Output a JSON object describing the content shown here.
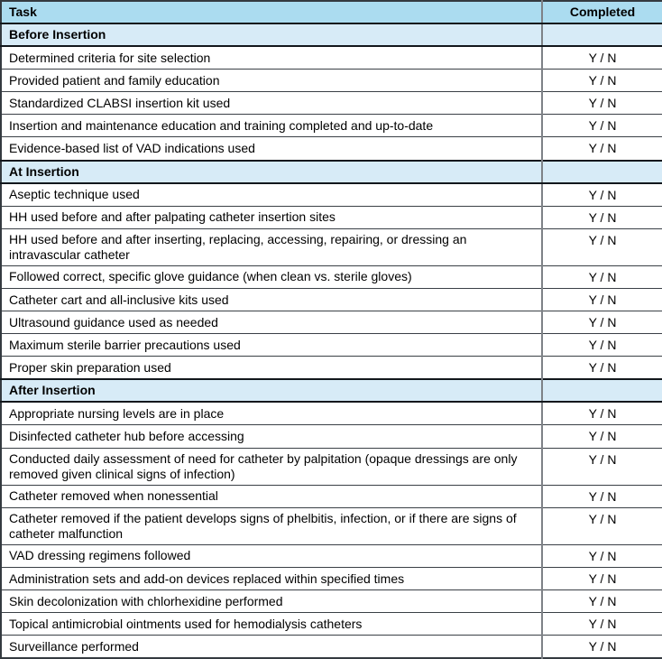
{
  "table": {
    "columns": [
      {
        "label": "Task"
      },
      {
        "label": "Completed"
      }
    ],
    "completed_value": "Y / N",
    "sections": [
      {
        "title": "Before Insertion",
        "rows": [
          "Determined criteria for site selection",
          "Provided patient and family education",
          "Standardized CLABSI insertion kit used",
          "Insertion and maintenance education and training completed and up-to-date",
          "Evidence-based list of VAD indications used"
        ]
      },
      {
        "title": "At Insertion",
        "rows": [
          "Aseptic technique used",
          "HH used before and after palpating catheter insertion sites",
          "HH used before and after inserting, replacing, accessing, repairing, or dressing an intravascular catheter",
          "Followed correct, specific glove guidance (when clean vs. sterile gloves)",
          "Catheter cart and all-inclusive kits used",
          "Ultrasound guidance used as needed",
          "Maximum sterile barrier precautions used",
          "Proper skin preparation used"
        ]
      },
      {
        "title": "After Insertion",
        "rows": [
          "Appropriate nursing levels are in place",
          "Disinfected catheter hub before accessing",
          "Conducted daily assessment of need for catheter by palpitation (opaque dressings are only removed given clinical signs of infection)",
          "Catheter removed when nonessential",
          "Catheter removed if the patient develops signs of phelbitis, infection, or if there are signs of catheter malfunction",
          "VAD dressing regimens followed",
          "Administration sets and add-on devices replaced within specified times",
          "Skin decolonization with chlorhexidine performed",
          "Topical antimicrobial ointments used for hemodialysis catheters",
          "Surveillance performed"
        ]
      }
    ],
    "colors": {
      "header_bg": "#abdcf0",
      "section_bg": "#d7ebf7",
      "strong_border": "#12171c",
      "row_border": "#3a4046",
      "outer_border": "#343a40",
      "divider": "#7e8287"
    }
  }
}
